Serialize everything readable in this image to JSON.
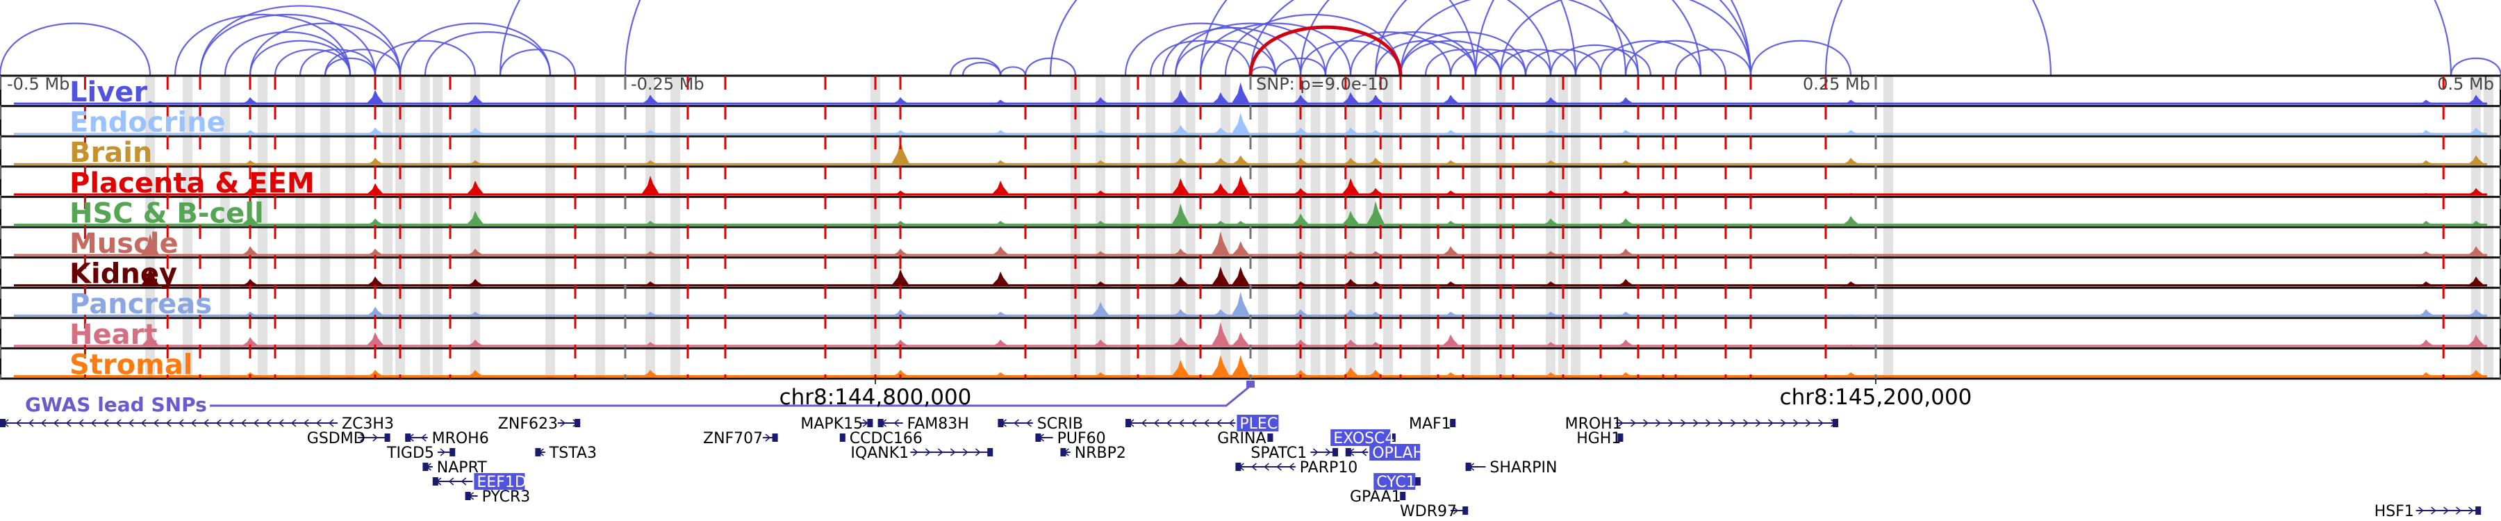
{
  "chart_data": {
    "type": "genome-browser",
    "title": "",
    "region": {
      "chrom": "chr8",
      "center_label": "SNP: p=9.0e-10",
      "xlim_mb": [
        -0.5,
        0.5
      ],
      "ruler_labels": [
        {
          "offset_mb": -0.5,
          "text": "-0.5 Mb"
        },
        {
          "offset_mb": -0.25,
          "text": "-0.25 Mb"
        },
        {
          "offset_mb": 0.0,
          "text": "SNP: p=9.0e-10"
        },
        {
          "offset_mb": 0.25,
          "text": "0.25 Mb"
        },
        {
          "offset_mb": 0.5,
          "text": "0.5 Mb"
        }
      ],
      "coordinate_labels": [
        {
          "offset_mb": -0.15,
          "text": "chr8:144,800,000"
        },
        {
          "offset_mb": 0.25,
          "text": "chr8:145,200,000"
        }
      ]
    },
    "tracks": [
      {
        "name": "Liver",
        "color": "#5252e0"
      },
      {
        "name": "Endocrine",
        "color": "#99c2ff"
      },
      {
        "name": "Brain",
        "color": "#c4922e"
      },
      {
        "name": "Placenta & EEM",
        "color": "#e00000"
      },
      {
        "name": "HSC & B-cell",
        "color": "#55a555"
      },
      {
        "name": "Muscle",
        "color": "#c46a60"
      },
      {
        "name": "Kidney",
        "color": "#660000"
      },
      {
        "name": "Pancreas",
        "color": "#8aa6e3"
      },
      {
        "name": "Heart",
        "color": "#d46e80"
      },
      {
        "name": "Stromal",
        "color": "#ff7a10"
      }
    ],
    "peaks_mb": [
      {
        "x": -0.44,
        "h": [
          0.15,
          0.1,
          0.1,
          0.1,
          0.1,
          0.9,
          0.8,
          0.1,
          0.6,
          0.1
        ]
      },
      {
        "x": -0.4,
        "h": [
          0.3,
          0.2,
          0.2,
          0.3,
          0.5,
          0.4,
          0.3,
          0.2,
          0.4,
          0.2
        ]
      },
      {
        "x": -0.35,
        "h": [
          0.6,
          0.3,
          0.3,
          0.5,
          0.3,
          0.3,
          0.4,
          0.4,
          0.6,
          0.3
        ]
      },
      {
        "x": -0.31,
        "h": [
          0.4,
          0.3,
          0.2,
          0.6,
          0.6,
          0.3,
          0.3,
          0.2,
          0.3,
          0.3
        ]
      },
      {
        "x": -0.24,
        "h": [
          0.4,
          0.2,
          0.2,
          0.8,
          0.2,
          0.2,
          0.2,
          0.2,
          0.2,
          0.3
        ]
      },
      {
        "x": -0.14,
        "h": [
          0.3,
          0.2,
          1.0,
          0.2,
          0.2,
          0.3,
          0.7,
          0.3,
          0.3,
          0.3
        ]
      },
      {
        "x": -0.1,
        "h": [
          0.2,
          0.2,
          0.2,
          0.6,
          0.2,
          0.4,
          0.6,
          0.2,
          0.3,
          0.2
        ]
      },
      {
        "x": -0.06,
        "h": [
          0.3,
          0.2,
          0.2,
          0.2,
          0.2,
          0.2,
          0.2,
          0.6,
          0.3,
          0.2
        ]
      },
      {
        "x": -0.028,
        "h": [
          0.6,
          0.4,
          0.3,
          0.7,
          0.9,
          0.3,
          0.4,
          0.3,
          0.4,
          0.7
        ]
      },
      {
        "x": -0.012,
        "h": [
          0.5,
          0.3,
          0.3,
          0.5,
          0.2,
          1.0,
          0.8,
          0.3,
          1.0,
          0.9
        ]
      },
      {
        "x": -0.004,
        "h": [
          0.9,
          0.9,
          0.4,
          0.8,
          0.2,
          0.6,
          0.8,
          1.0,
          0.6,
          0.9
        ]
      },
      {
        "x": 0.02,
        "h": [
          0.4,
          0.3,
          0.3,
          0.3,
          0.5,
          0.2,
          0.2,
          0.3,
          0.3,
          0.3
        ]
      },
      {
        "x": 0.04,
        "h": [
          0.5,
          0.3,
          0.3,
          0.7,
          0.6,
          0.2,
          0.3,
          0.3,
          0.3,
          0.4
        ]
      },
      {
        "x": 0.05,
        "h": [
          0.4,
          0.2,
          0.3,
          0.3,
          1.0,
          0.2,
          0.2,
          0.2,
          0.2,
          0.3
        ]
      },
      {
        "x": 0.08,
        "h": [
          0.4,
          0.2,
          0.2,
          0.2,
          0.2,
          0.4,
          0.2,
          0.2,
          0.5,
          0.2
        ]
      },
      {
        "x": 0.12,
        "h": [
          0.3,
          0.2,
          0.2,
          0.2,
          0.3,
          0.2,
          0.2,
          0.2,
          0.2,
          0.2
        ]
      },
      {
        "x": 0.15,
        "h": [
          0.3,
          0.2,
          0.2,
          0.2,
          0.3,
          0.3,
          0.3,
          0.2,
          0.3,
          0.2
        ]
      },
      {
        "x": 0.24,
        "h": [
          0.2,
          0.2,
          0.3,
          0.1,
          0.4,
          0.1,
          0.2,
          0.1,
          0.1,
          0.2
        ]
      },
      {
        "x": 0.47,
        "h": [
          0.2,
          0.2,
          0.2,
          0.1,
          0.2,
          0.2,
          0.2,
          0.3,
          0.3,
          0.2
        ]
      },
      {
        "x": 0.49,
        "h": [
          0.4,
          0.3,
          0.4,
          0.3,
          0.2,
          0.4,
          0.4,
          0.3,
          0.5,
          0.3
        ]
      }
    ],
    "snp_lines_mb": [
      -0.466,
      -0.433,
      -0.42,
      -0.4,
      -0.39,
      -0.35,
      -0.34,
      -0.32,
      -0.27,
      -0.225,
      -0.21,
      -0.17,
      -0.15,
      -0.14,
      -0.09,
      -0.07,
      -0.045,
      -0.02,
      0.02,
      0.038,
      0.052,
      0.06,
      0.075,
      0.085,
      0.1,
      0.105,
      0.125,
      0.14,
      0.155,
      0.165,
      0.17,
      0.19,
      0.2,
      0.23,
      0.477
    ],
    "highlight_regions_mb": [
      -0.44,
      -0.425,
      -0.41,
      -0.395,
      -0.38,
      -0.37,
      -0.36,
      -0.345,
      -0.34,
      -0.33,
      -0.325,
      -0.31,
      -0.28,
      -0.26,
      -0.24,
      -0.23,
      -0.15,
      -0.07,
      -0.06,
      -0.05,
      -0.04,
      -0.03,
      -0.024,
      -0.01,
      0.005,
      0.02,
      0.026,
      0.032,
      0.04,
      0.048,
      0.055,
      0.07,
      0.09,
      0.1,
      0.12,
      0.125,
      0.13,
      0.255,
      0.49,
      0.495
    ],
    "arcs": {
      "color": "#5252e0",
      "highlight_color": "#d00010",
      "highlight": {
        "from_mb": 0.0,
        "to_mb": 0.06
      },
      "links_mb": [
        [
          -0.5,
          -0.44
        ],
        [
          -0.43,
          -0.36
        ],
        [
          -0.42,
          -0.35
        ],
        [
          -0.41,
          -0.36
        ],
        [
          -0.4,
          -0.36
        ],
        [
          -0.39,
          -0.36
        ],
        [
          -0.38,
          -0.35
        ],
        [
          -0.37,
          -0.35
        ],
        [
          -0.42,
          -0.34
        ],
        [
          -0.4,
          -0.34
        ],
        [
          -0.35,
          -0.31
        ],
        [
          -0.34,
          -0.28
        ],
        [
          -0.33,
          -0.28
        ],
        [
          -0.3,
          -0.27
        ],
        [
          -0.34,
          -0.37
        ],
        [
          -0.12,
          -0.1
        ],
        [
          -0.115,
          -0.1
        ],
        [
          -0.1,
          -0.09
        ],
        [
          -0.09,
          -0.07
        ],
        [
          -0.25,
          0.13
        ],
        [
          -0.03,
          0.01
        ],
        [
          -0.04,
          0.0
        ],
        [
          -0.05,
          0.01
        ],
        [
          -0.035,
          0.02
        ],
        [
          -0.03,
          0.03
        ],
        [
          -0.02,
          0.04
        ],
        [
          -0.01,
          0.06
        ],
        [
          0.0,
          0.01
        ],
        [
          0.01,
          0.03
        ],
        [
          0.02,
          0.06
        ],
        [
          0.03,
          0.08
        ],
        [
          0.04,
          0.09
        ],
        [
          0.05,
          0.09
        ],
        [
          0.06,
          0.1
        ],
        [
          0.06,
          0.11
        ],
        [
          0.07,
          0.1
        ],
        [
          0.08,
          0.11
        ],
        [
          0.09,
          0.12
        ],
        [
          0.1,
          0.13
        ],
        [
          0.11,
          0.14
        ],
        [
          0.12,
          0.155
        ],
        [
          0.13,
          0.16
        ],
        [
          0.14,
          0.18
        ],
        [
          0.06,
          0.155
        ],
        [
          0.0,
          0.12
        ],
        [
          -0.02,
          0.15
        ],
        [
          0.02,
          0.18
        ],
        [
          0.05,
          0.2
        ],
        [
          0.1,
          0.2
        ],
        [
          0.15,
          0.19
        ],
        [
          0.17,
          0.2
        ],
        [
          0.2,
          0.24
        ],
        [
          -0.08,
          0.09
        ],
        [
          0.09,
          0.32
        ],
        [
          0.23,
          0.48
        ],
        [
          0.48,
          0.5
        ],
        [
          -0.3,
          0.2
        ]
      ]
    },
    "gwas": {
      "title": "GWAS lead SNPs",
      "snp_mb": [
        0.0
      ]
    }
  },
  "genes": [
    {
      "name": "ZC3H3",
      "start": -0.5,
      "end": -0.365,
      "strand": "-",
      "row": 0,
      "label_side": "right",
      "highlight": false
    },
    {
      "name": "GSDMD",
      "start": -0.357,
      "end": -0.344,
      "strand": "+",
      "row": 1,
      "label_side": "left",
      "highlight": false
    },
    {
      "name": "MROH6",
      "start": -0.338,
      "end": -0.329,
      "strand": "-",
      "row": 1,
      "label_side": "right",
      "highlight": false
    },
    {
      "name": "TIGD5",
      "start": -0.325,
      "end": -0.318,
      "strand": "+",
      "row": 2,
      "label_side": "left",
      "highlight": false
    },
    {
      "name": "NAPRT",
      "start": -0.331,
      "end": -0.327,
      "strand": "-",
      "row": 3,
      "label_side": "right",
      "highlight": false
    },
    {
      "name": "EEF1D",
      "start": -0.327,
      "end": -0.311,
      "strand": "-",
      "row": 4,
      "label_side": "right",
      "highlight": true
    },
    {
      "name": "PYCR3",
      "start": -0.314,
      "end": -0.309,
      "strand": "-",
      "row": 5,
      "label_side": "right",
      "highlight": false
    },
    {
      "name": "ZNF623",
      "start": -0.277,
      "end": -0.268,
      "strand": "+",
      "row": 0,
      "label_side": "left",
      "highlight": false
    },
    {
      "name": "TSTA3",
      "start": -0.286,
      "end": -0.282,
      "strand": "-",
      "row": 2,
      "label_side": "right",
      "highlight": false
    },
    {
      "name": "ZNF707",
      "start": -0.195,
      "end": -0.189,
      "strand": "+",
      "row": 1,
      "label_side": "left",
      "highlight": false
    },
    {
      "name": "MAPK15",
      "start": -0.156,
      "end": -0.151,
      "strand": "+",
      "row": 0,
      "label_side": "left",
      "highlight": false
    },
    {
      "name": "FAM83H",
      "start": -0.149,
      "end": -0.139,
      "strand": "-",
      "row": 0,
      "label_side": "right",
      "highlight": false
    },
    {
      "name": "CCDC166",
      "start": -0.163,
      "end": -0.162,
      "strand": "+",
      "row": 1,
      "label_side": "right",
      "highlight": false
    },
    {
      "name": "IQANK1",
      "start": -0.136,
      "end": -0.103,
      "strand": "+",
      "row": 2,
      "label_side": "left",
      "highlight": false
    },
    {
      "name": "SCRIB",
      "start": -0.101,
      "end": -0.087,
      "strand": "-",
      "row": 0,
      "label_side": "right",
      "highlight": false
    },
    {
      "name": "PUF60",
      "start": -0.086,
      "end": -0.079,
      "strand": "-",
      "row": 1,
      "label_side": "right",
      "highlight": false
    },
    {
      "name": "NRBP2",
      "start": -0.076,
      "end": -0.072,
      "strand": "-",
      "row": 2,
      "label_side": "right",
      "highlight": false
    },
    {
      "name": "PLEC",
      "start": -0.05,
      "end": -0.006,
      "strand": "-",
      "row": 0,
      "label_side": "right",
      "highlight": true
    },
    {
      "name": "GRINA",
      "start": 0.007,
      "end": 0.009,
      "strand": "+",
      "row": 1,
      "label_side": "left",
      "highlight": false
    },
    {
      "name": "SPATC1",
      "start": 0.024,
      "end": 0.035,
      "strand": "+",
      "row": 2,
      "label_side": "left",
      "highlight": false
    },
    {
      "name": "PARP10",
      "start": -0.006,
      "end": 0.018,
      "strand": "-",
      "row": 3,
      "label_side": "right",
      "highlight": false
    },
    {
      "name": "EXOSC4",
      "start": 0.057,
      "end": 0.058,
      "strand": "+",
      "row": 1,
      "label_side": "left",
      "highlight": true
    },
    {
      "name": "OPLAH",
      "start": 0.038,
      "end": 0.047,
      "strand": "-",
      "row": 2,
      "label_side": "right",
      "highlight": true
    },
    {
      "name": "CYC1",
      "start": 0.067,
      "end": 0.068,
      "strand": "+",
      "row": 4,
      "label_side": "left",
      "highlight": true
    },
    {
      "name": "GPAA1",
      "start": 0.06,
      "end": 0.062,
      "strand": "+",
      "row": 5,
      "label_side": "left",
      "highlight": false
    },
    {
      "name": "WDR97",
      "start": 0.08,
      "end": 0.087,
      "strand": "+",
      "row": 6,
      "label_side": "left",
      "highlight": false
    },
    {
      "name": "MAF1",
      "start": 0.08,
      "end": 0.082,
      "strand": "+",
      "row": 0,
      "label_side": "left",
      "highlight": false
    },
    {
      "name": "SHARPIN",
      "start": 0.086,
      "end": 0.094,
      "strand": "-",
      "row": 3,
      "label_side": "right",
      "highlight": false
    },
    {
      "name": "MROH1",
      "start": 0.146,
      "end": 0.235,
      "strand": "+",
      "row": 0,
      "label_side": "left",
      "highlight": false
    },
    {
      "name": "HGH1",
      "start": 0.147,
      "end": 0.149,
      "strand": "+",
      "row": 1,
      "label_side": "left",
      "highlight": false
    },
    {
      "name": "HSF1",
      "start": 0.466,
      "end": 0.492,
      "strand": "+",
      "row": 6,
      "label_side": "left",
      "highlight": false
    }
  ],
  "colors": {
    "gene": "#1a1a6e",
    "gene_highlight_bg": "#5252e0",
    "snp_line": "#e00000",
    "highlight_region": "#e2e2e2",
    "gwas": "#6a5acd"
  }
}
